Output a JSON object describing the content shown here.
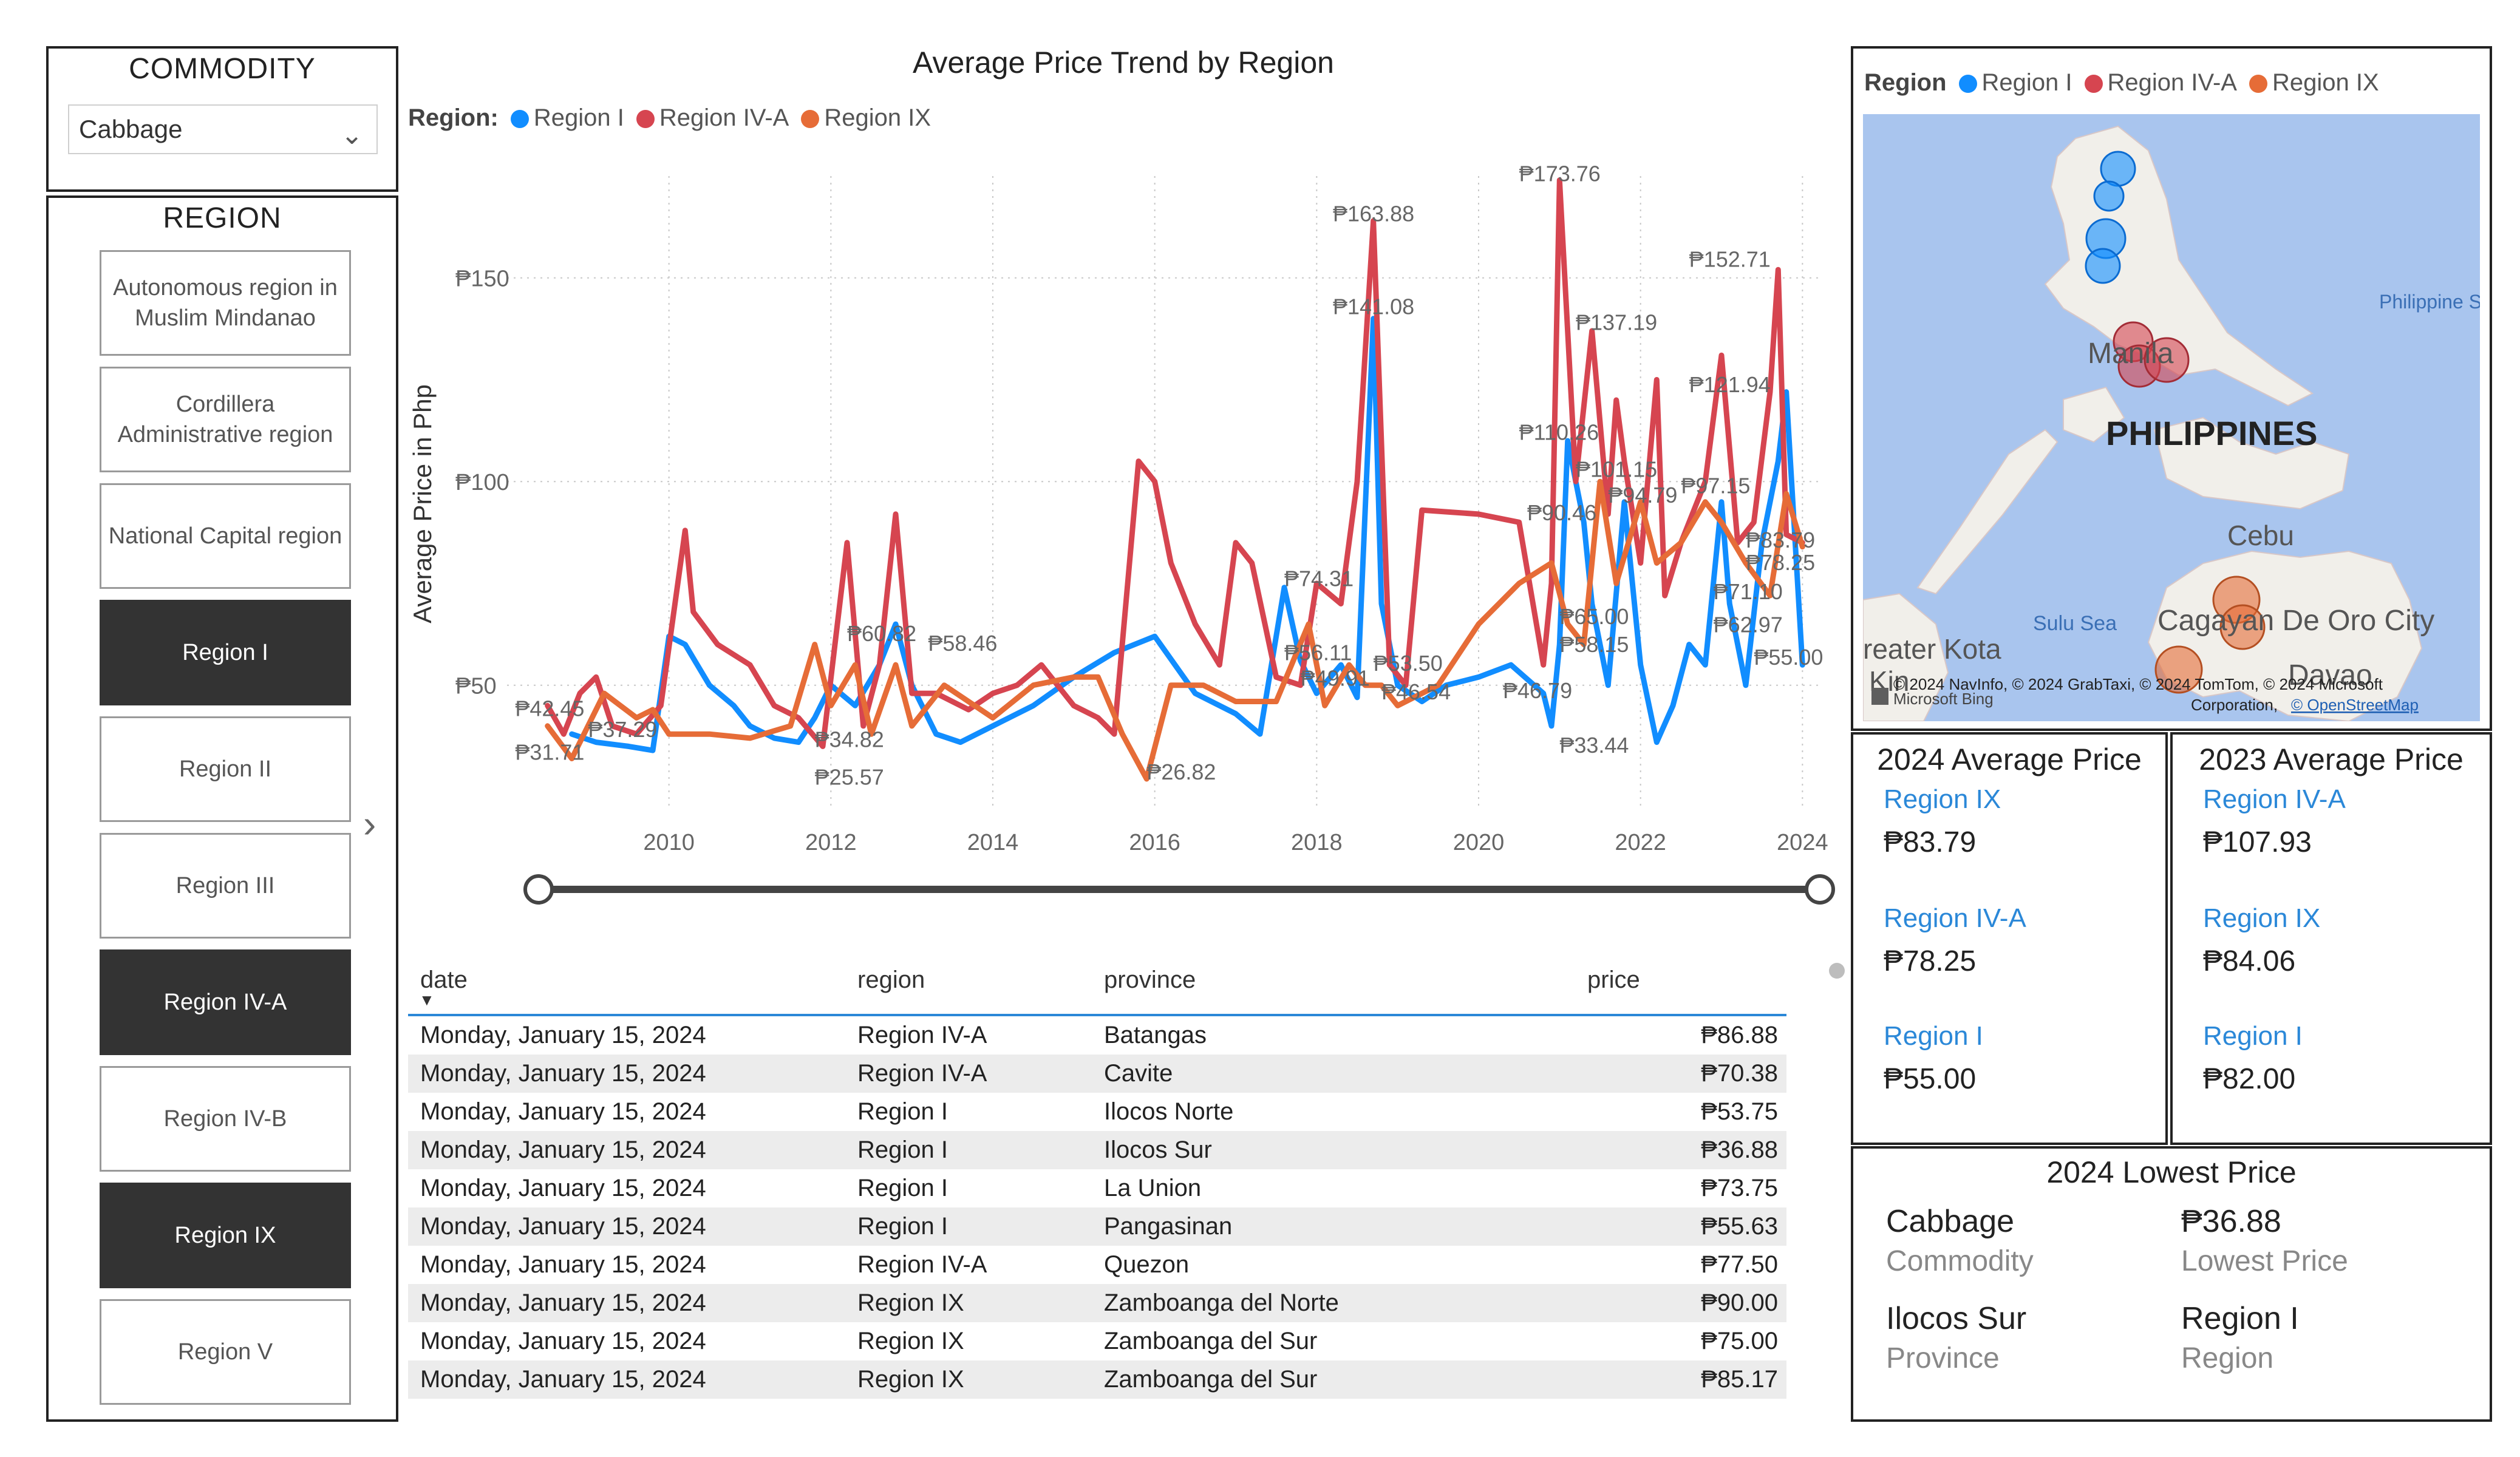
{
  "commodity": {
    "header": "COMMODITY",
    "selected": "Cabbage"
  },
  "region_slicer": {
    "header": "REGION",
    "items": [
      {
        "label": "Autonomous region in Muslim Mindanao",
        "selected": false
      },
      {
        "label": "Cordillera Administrative region",
        "selected": false
      },
      {
        "label": "National Capital region",
        "selected": false
      },
      {
        "label": "Region I",
        "selected": true
      },
      {
        "label": "Region II",
        "selected": false
      },
      {
        "label": "Region III",
        "selected": false
      },
      {
        "label": "Region IV-A",
        "selected": true
      },
      {
        "label": "Region IV-B",
        "selected": false
      },
      {
        "label": "Region IX",
        "selected": true
      },
      {
        "label": "Region V",
        "selected": false
      }
    ]
  },
  "chart": {
    "title": "Average Price Trend by Region",
    "legend_title": "Region:",
    "ylabel": "Average Price in Php"
  },
  "map": {
    "legend_title": "Region",
    "labels": {
      "manila": "Manila",
      "philippines": "PHILIPPINES",
      "cebu": "Cebu",
      "sulu_sea": "Sulu Sea",
      "cagayan": "Cagayan De Oro City",
      "davao": "Davao",
      "kota": "reater Kota",
      "kinabalu": "Kin",
      "philippine_sea": "Philippine S",
      "attribution": "© 2024 NavInfo, © 2024 GrabTaxi, © 2024 TomTom, © 2024 Microsoft",
      "attribution2": "Corporation,",
      "osm": "© OpenStreetMap",
      "bing": "Microsoft Bing"
    }
  },
  "kpi_2024": {
    "title": "2024 Average Price",
    "items": [
      {
        "region": "Region IX",
        "value": "₱83.79"
      },
      {
        "region": "Region IV-A",
        "value": "₱78.25"
      },
      {
        "region": "Region I",
        "value": "₱55.00"
      }
    ]
  },
  "kpi_2023": {
    "title": "2023 Average Price",
    "items": [
      {
        "region": "Region IV-A",
        "value": "₱107.93"
      },
      {
        "region": "Region IX",
        "value": "₱84.06"
      },
      {
        "region": "Region I",
        "value": "₱82.00"
      }
    ]
  },
  "lowest": {
    "title": "2024 Lowest Price",
    "commodity_value": "Cabbage",
    "commodity_label": "Commodity",
    "price_value": "₱36.88",
    "price_label": "Lowest Price",
    "province_value": "Ilocos Sur",
    "province_label": "Province",
    "region_value": "Region I",
    "region_label": "Region"
  },
  "table": {
    "columns": [
      "date",
      "region",
      "province",
      "price"
    ],
    "rows": [
      [
        "Monday, January 15, 2024",
        "Region IV-A",
        "Batangas",
        "₱86.88"
      ],
      [
        "Monday, January 15, 2024",
        "Region IV-A",
        "Cavite",
        "₱70.38"
      ],
      [
        "Monday, January 15, 2024",
        "Region I",
        "Ilocos Norte",
        "₱53.75"
      ],
      [
        "Monday, January 15, 2024",
        "Region I",
        "Ilocos Sur",
        "₱36.88"
      ],
      [
        "Monday, January 15, 2024",
        "Region I",
        "La Union",
        "₱73.75"
      ],
      [
        "Monday, January 15, 2024",
        "Region I",
        "Pangasinan",
        "₱55.63"
      ],
      [
        "Monday, January 15, 2024",
        "Region IV-A",
        "Quezon",
        "₱77.50"
      ],
      [
        "Monday, January 15, 2024",
        "Region IX",
        "Zamboanga del Norte",
        "₱90.00"
      ],
      [
        "Monday, January 15, 2024",
        "Region IX",
        "Zamboanga del Sur",
        "₱75.00"
      ],
      [
        "Monday, January 15, 2024",
        "Region IX",
        "Zamboanga del Sur",
        "₱85.17"
      ]
    ]
  },
  "chart_data": {
    "type": "line",
    "title": "Average Price Trend by Region",
    "xlabel": "",
    "ylabel": "Average Price in Php",
    "xlim": [
      2008.0,
      2024.2
    ],
    "ylim": [
      20,
      175
    ],
    "xticks": [
      "2010",
      "2012",
      "2014",
      "2016",
      "2018",
      "2020",
      "2022",
      "2024"
    ],
    "yticks": [
      {
        "value": 50,
        "label": "₱50"
      },
      {
        "value": 100,
        "label": "₱100"
      },
      {
        "value": 150,
        "label": "₱150"
      }
    ],
    "legend_position": "top-left",
    "grid": true,
    "series": [
      {
        "name": "Region I",
        "color": "#118DFF",
        "points": [
          [
            2008.8,
            38
          ],
          [
            2009.1,
            36
          ],
          [
            2009.5,
            35
          ],
          [
            2009.8,
            34
          ],
          [
            2010.0,
            62
          ],
          [
            2010.2,
            60
          ],
          [
            2010.5,
            50
          ],
          [
            2010.8,
            45
          ],
          [
            2011.0,
            40
          ],
          [
            2011.3,
            37
          ],
          [
            2011.6,
            36
          ],
          [
            2011.8,
            42
          ],
          [
            2012.0,
            50
          ],
          [
            2012.3,
            45
          ],
          [
            2012.6,
            55
          ],
          [
            2012.8,
            65
          ],
          [
            2013.0,
            50
          ],
          [
            2013.3,
            38
          ],
          [
            2013.6,
            36
          ],
          [
            2014.0,
            40
          ],
          [
            2014.5,
            45
          ],
          [
            2015.0,
            52
          ],
          [
            2015.5,
            58
          ],
          [
            2016.0,
            62
          ],
          [
            2016.5,
            48
          ],
          [
            2017.0,
            43
          ],
          [
            2017.3,
            38
          ],
          [
            2017.6,
            74
          ],
          [
            2017.8,
            56
          ],
          [
            2018.0,
            48
          ],
          [
            2018.3,
            55
          ],
          [
            2018.5,
            47
          ],
          [
            2018.7,
            140
          ],
          [
            2018.8,
            70
          ],
          [
            2019.0,
            50
          ],
          [
            2019.3,
            46
          ],
          [
            2019.6,
            50
          ],
          [
            2020.0,
            52
          ],
          [
            2020.4,
            55
          ],
          [
            2020.8,
            48
          ],
          [
            2020.9,
            40
          ],
          [
            2021.0,
            60
          ],
          [
            2021.1,
            110
          ],
          [
            2021.3,
            90
          ],
          [
            2021.4,
            70
          ],
          [
            2021.6,
            50
          ],
          [
            2021.8,
            95
          ],
          [
            2021.9,
            75
          ],
          [
            2022.0,
            55
          ],
          [
            2022.2,
            36
          ],
          [
            2022.4,
            45
          ],
          [
            2022.6,
            60
          ],
          [
            2022.8,
            55
          ],
          [
            2023.0,
            95
          ],
          [
            2023.1,
            70
          ],
          [
            2023.3,
            50
          ],
          [
            2023.5,
            85
          ],
          [
            2023.7,
            105
          ],
          [
            2023.8,
            122
          ],
          [
            2024.0,
            55
          ]
        ]
      },
      {
        "name": "Region IV-A",
        "color": "#D64550",
        "points": [
          [
            2008.5,
            45
          ],
          [
            2008.7,
            38
          ],
          [
            2008.9,
            48
          ],
          [
            2009.1,
            52
          ],
          [
            2009.3,
            40
          ],
          [
            2009.6,
            38
          ],
          [
            2009.9,
            45
          ],
          [
            2010.2,
            88
          ],
          [
            2010.3,
            68
          ],
          [
            2010.6,
            60
          ],
          [
            2011.0,
            55
          ],
          [
            2011.3,
            45
          ],
          [
            2011.6,
            42
          ],
          [
            2011.9,
            35
          ],
          [
            2012.2,
            85
          ],
          [
            2012.4,
            40
          ],
          [
            2012.6,
            55
          ],
          [
            2012.8,
            92
          ],
          [
            2013.0,
            48
          ],
          [
            2013.3,
            48
          ],
          [
            2013.7,
            44
          ],
          [
            2014.0,
            48
          ],
          [
            2014.3,
            50
          ],
          [
            2014.6,
            55
          ],
          [
            2015.0,
            45
          ],
          [
            2015.3,
            42
          ],
          [
            2015.5,
            38
          ],
          [
            2015.8,
            105
          ],
          [
            2016.0,
            100
          ],
          [
            2016.2,
            80
          ],
          [
            2016.5,
            65
          ],
          [
            2016.8,
            55
          ],
          [
            2017.0,
            85
          ],
          [
            2017.2,
            80
          ],
          [
            2017.5,
            52
          ],
          [
            2017.8,
            50
          ],
          [
            2018.0,
            75
          ],
          [
            2018.3,
            70
          ],
          [
            2018.5,
            100
          ],
          [
            2018.7,
            164
          ],
          [
            2018.9,
            55
          ],
          [
            2019.1,
            50
          ],
          [
            2019.3,
            93
          ],
          [
            2020.0,
            92
          ],
          [
            2020.5,
            90
          ],
          [
            2020.8,
            55
          ],
          [
            2020.9,
            75
          ],
          [
            2021.0,
            174
          ],
          [
            2021.2,
            100
          ],
          [
            2021.4,
            137
          ],
          [
            2021.6,
            92
          ],
          [
            2021.7,
            120
          ],
          [
            2021.8,
            105
          ],
          [
            2022.0,
            80
          ],
          [
            2022.2,
            125
          ],
          [
            2022.3,
            72
          ],
          [
            2022.5,
            85
          ],
          [
            2022.8,
            100
          ],
          [
            2023.0,
            131
          ],
          [
            2023.2,
            85
          ],
          [
            2023.4,
            90
          ],
          [
            2023.6,
            122
          ],
          [
            2023.7,
            152
          ],
          [
            2023.8,
            87
          ],
          [
            2024.0,
            85
          ]
        ]
      },
      {
        "name": "Region IX",
        "color": "#E66C37",
        "points": [
          [
            2008.5,
            40
          ],
          [
            2008.8,
            32
          ],
          [
            2009.2,
            48
          ],
          [
            2009.6,
            42
          ],
          [
            2009.8,
            44
          ],
          [
            2010.0,
            38
          ],
          [
            2010.5,
            38
          ],
          [
            2011.0,
            37
          ],
          [
            2011.5,
            40
          ],
          [
            2011.8,
            60
          ],
          [
            2012.0,
            45
          ],
          [
            2012.3,
            55
          ],
          [
            2012.5,
            38
          ],
          [
            2012.8,
            55
          ],
          [
            2013.0,
            40
          ],
          [
            2013.4,
            50
          ],
          [
            2014.0,
            42
          ],
          [
            2014.5,
            50
          ],
          [
            2015.0,
            52
          ],
          [
            2015.3,
            52
          ],
          [
            2015.6,
            38
          ],
          [
            2015.9,
            27
          ],
          [
            2016.2,
            50
          ],
          [
            2016.6,
            50
          ],
          [
            2017.0,
            46
          ],
          [
            2017.5,
            46
          ],
          [
            2017.9,
            65
          ],
          [
            2018.1,
            45
          ],
          [
            2018.4,
            55
          ],
          [
            2018.6,
            50
          ],
          [
            2018.8,
            50
          ],
          [
            2019.0,
            45
          ],
          [
            2019.5,
            50
          ],
          [
            2020.0,
            65
          ],
          [
            2020.5,
            75
          ],
          [
            2020.9,
            80
          ],
          [
            2021.1,
            65
          ],
          [
            2021.3,
            60
          ],
          [
            2021.5,
            100
          ],
          [
            2021.7,
            75
          ],
          [
            2022.0,
            95
          ],
          [
            2022.2,
            80
          ],
          [
            2022.5,
            85
          ],
          [
            2022.8,
            95
          ],
          [
            2023.0,
            90
          ],
          [
            2023.3,
            80
          ],
          [
            2023.6,
            72
          ],
          [
            2023.8,
            97
          ],
          [
            2024.0,
            84
          ]
        ]
      }
    ],
    "data_labels": [
      {
        "x": 2008.1,
        "y": 42.45,
        "text": "₱42.45"
      },
      {
        "x": 2008.1,
        "y": 31.71,
        "text": "₱31.71"
      },
      {
        "x": 2009.0,
        "y": 37.29,
        "text": "₱37.29"
      },
      {
        "x": 2012.2,
        "y": 60.82,
        "text": "₱60.82"
      },
      {
        "x": 2013.2,
        "y": 58.46,
        "text": "₱58.46"
      },
      {
        "x": 2011.8,
        "y": 34.82,
        "text": "₱34.82"
      },
      {
        "x": 2011.8,
        "y": 25.57,
        "text": "₱25.57"
      },
      {
        "x": 2015.9,
        "y": 26.82,
        "text": "₱26.82"
      },
      {
        "x": 2017.6,
        "y": 74.31,
        "text": "₱74.31"
      },
      {
        "x": 2017.6,
        "y": 56.11,
        "text": "₱56.11"
      },
      {
        "x": 2017.8,
        "y": 49.91,
        "text": "₱49.91"
      },
      {
        "x": 2018.2,
        "y": 163.88,
        "text": "₱163.88"
      },
      {
        "x": 2018.2,
        "y": 141.08,
        "text": "₱141.08"
      },
      {
        "x": 2018.7,
        "y": 53.5,
        "text": "₱53.50"
      },
      {
        "x": 2018.8,
        "y": 46.54,
        "text": "₱46.54"
      },
      {
        "x": 2020.5,
        "y": 173.76,
        "text": "₱173.76"
      },
      {
        "x": 2020.5,
        "y": 110.26,
        "text": "₱110.26"
      },
      {
        "x": 2020.6,
        "y": 90.46,
        "text": "₱90.46"
      },
      {
        "x": 2020.3,
        "y": 46.79,
        "text": "₱46.79"
      },
      {
        "x": 2021.2,
        "y": 137.19,
        "text": "₱137.19"
      },
      {
        "x": 2021.2,
        "y": 101.15,
        "text": "₱101.15"
      },
      {
        "x": 2021.6,
        "y": 94.79,
        "text": "₱94.79"
      },
      {
        "x": 2021.0,
        "y": 65.0,
        "text": "₱65.00"
      },
      {
        "x": 2021.0,
        "y": 58.15,
        "text": "₱58.15"
      },
      {
        "x": 2021.0,
        "y": 33.44,
        "text": "₱33.44"
      },
      {
        "x": 2022.6,
        "y": 152.71,
        "text": "₱152.71"
      },
      {
        "x": 2022.6,
        "y": 121.94,
        "text": "₱121.94"
      },
      {
        "x": 2022.5,
        "y": 97.15,
        "text": "₱97.15"
      },
      {
        "x": 2022.9,
        "y": 71.1,
        "text": "₱71.10"
      },
      {
        "x": 2022.9,
        "y": 62.97,
        "text": "₱62.97"
      },
      {
        "x": 2023.3,
        "y": 83.79,
        "text": "₱83.79"
      },
      {
        "x": 2023.3,
        "y": 78.25,
        "text": "₱78.25"
      },
      {
        "x": 2023.4,
        "y": 55.0,
        "text": "₱55.00"
      }
    ]
  }
}
